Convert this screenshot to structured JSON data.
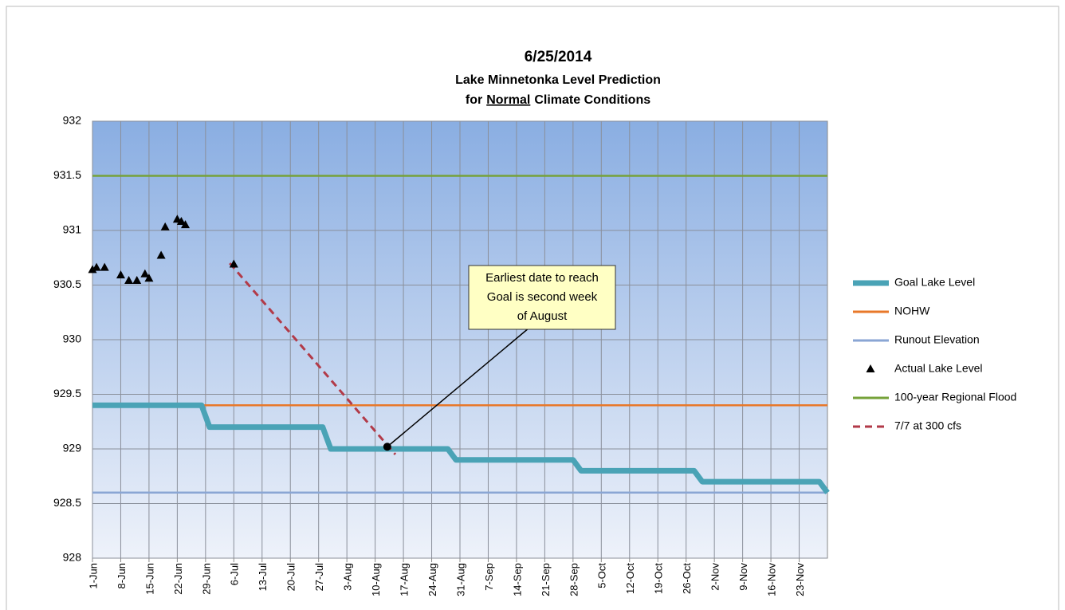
{
  "chart_data": {
    "type": "line",
    "title": "6/25/2014",
    "subtitle": "Lake Minnetonka Level Prediction",
    "subtitle2_parts": [
      "for",
      "Normal",
      "Climate Conditions"
    ],
    "subtitle2_underline": 1,
    "xlim": [
      0,
      182
    ],
    "xticks": [
      {
        "value": 0,
        "label": "1-Jun"
      },
      {
        "value": 7,
        "label": "8-Jun"
      },
      {
        "value": 14,
        "label": "15-Jun"
      },
      {
        "value": 21,
        "label": "22-Jun"
      },
      {
        "value": 28,
        "label": "29-Jun"
      },
      {
        "value": 35,
        "label": "6-Jul"
      },
      {
        "value": 42,
        "label": "13-Jul"
      },
      {
        "value": 49,
        "label": "20-Jul"
      },
      {
        "value": 56,
        "label": "27-Jul"
      },
      {
        "value": 63,
        "label": "3-Aug"
      },
      {
        "value": 70,
        "label": "10-Aug"
      },
      {
        "value": 77,
        "label": "17-Aug"
      },
      {
        "value": 84,
        "label": "24-Aug"
      },
      {
        "value": 91,
        "label": "31-Aug"
      },
      {
        "value": 98,
        "label": "7-Sep"
      },
      {
        "value": 105,
        "label": "14-Sep"
      },
      {
        "value": 112,
        "label": "21-Sep"
      },
      {
        "value": 119,
        "label": "28-Sep"
      },
      {
        "value": 126,
        "label": "5-Oct"
      },
      {
        "value": 133,
        "label": "12-Oct"
      },
      {
        "value": 140,
        "label": "19-Oct"
      },
      {
        "value": 147,
        "label": "26-Oct"
      },
      {
        "value": 154,
        "label": "2-Nov"
      },
      {
        "value": 161,
        "label": "9-Nov"
      },
      {
        "value": 168,
        "label": "16-Nov"
      },
      {
        "value": 175,
        "label": "23-Nov"
      }
    ],
    "ylim": [
      928,
      932
    ],
    "yticks": [
      928,
      928.5,
      929,
      929.5,
      930,
      930.5,
      931,
      931.5,
      932
    ],
    "grid": true,
    "legend": "right",
    "series": [
      {
        "name": "Goal Lake Level",
        "color": "#4aa3b6",
        "style": "thick",
        "x": [
          0,
          27,
          29,
          57,
          59,
          88,
          90,
          119,
          121,
          149,
          151,
          180,
          182
        ],
        "values": [
          929.4,
          929.4,
          929.2,
          929.2,
          929,
          929,
          928.9,
          928.9,
          928.8,
          928.8,
          928.7,
          928.7,
          928.6
        ]
      },
      {
        "name": "NOHW",
        "color": "#e8782a",
        "style": "line",
        "x": [
          0,
          182
        ],
        "values": [
          929.4,
          929.4
        ]
      },
      {
        "name": "Runout Elevation",
        "color": "#8aa6d4",
        "style": "line",
        "x": [
          0,
          182
        ],
        "values": [
          928.6,
          928.6
        ]
      },
      {
        "name": "Actual Lake Level",
        "color": "#000000",
        "style": "markers",
        "x": [
          0,
          1,
          3,
          7,
          9,
          11,
          13,
          14,
          17,
          18,
          21,
          22,
          23,
          35
        ],
        "values": [
          930.64,
          930.66,
          930.66,
          930.59,
          930.54,
          930.54,
          930.6,
          930.56,
          930.77,
          931.03,
          931.1,
          931.08,
          931.05,
          930.69
        ]
      },
      {
        "name": "100-year Regional Flood",
        "color": "#76a23a",
        "style": "line",
        "x": [
          0,
          182
        ],
        "values": [
          931.5,
          931.5
        ]
      },
      {
        "name": "7/7 at 300 cfs",
        "color": "#b23a48",
        "style": "dashed",
        "x": [
          34,
          75
        ],
        "values": [
          930.7,
          928.95
        ]
      }
    ],
    "annotation": {
      "lines": [
        "Earliest date to reach",
        "Goal is second week",
        "of August"
      ],
      "x": 73,
      "y": 929.02
    }
  }
}
